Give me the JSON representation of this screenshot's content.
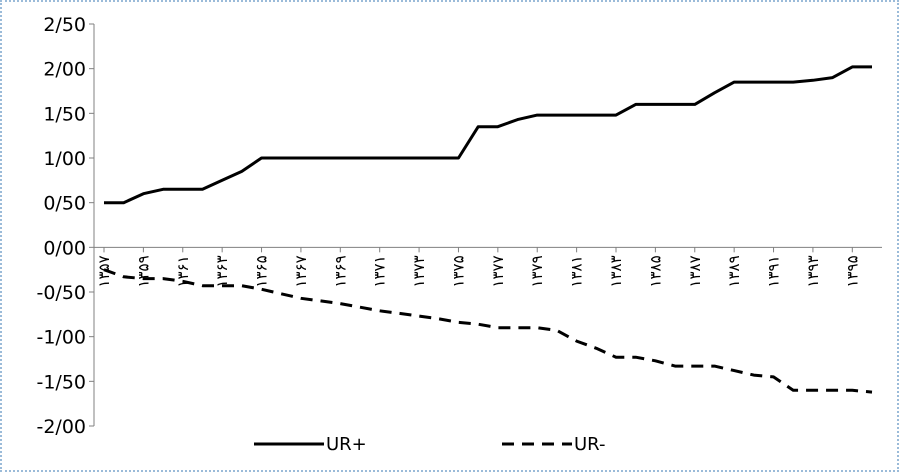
{
  "chart_data": {
    "type": "line",
    "title": "",
    "xlabel": "",
    "ylabel": "",
    "ylim": [
      -2,
      2.5
    ],
    "y_ticks": [
      2.5,
      2,
      1.5,
      1,
      0.5,
      0,
      -0.5,
      -1,
      -1.5,
      -2
    ],
    "y_tick_labels": [
      "2/50",
      "2/00",
      "1/50",
      "1/00",
      "0/50",
      "0/00",
      "-0/50",
      "-1/00",
      "-1/50",
      "-2/00"
    ],
    "x_tick_labels": [
      "۱۳۵۷",
      "۱۳۵۹",
      "۱۳۶۱",
      "۱۳۶۳",
      "۱۳۶۵",
      "۱۳۶۷",
      "۱۳۶۹",
      "۱۳۷۱",
      "۱۳۷۳",
      "۱۳۷۵",
      "۱۳۷۷",
      "۱۳۷۹",
      "۱۳۸۱",
      "۱۳۸۳",
      "۱۳۸۵",
      "۱۳۸۷",
      "۱۳۸۹",
      "۱۳۹۱",
      "۱۳۹۳",
      "۱۳۹۵"
    ],
    "x": [
      1357,
      1358,
      1359,
      1360,
      1361,
      1362,
      1363,
      1364,
      1365,
      1366,
      1367,
      1368,
      1369,
      1370,
      1371,
      1372,
      1373,
      1374,
      1375,
      1376,
      1377,
      1378,
      1379,
      1380,
      1381,
      1382,
      1383,
      1384,
      1385,
      1386,
      1387,
      1388,
      1389,
      1390,
      1391,
      1392,
      1393,
      1394,
      1395,
      1396
    ],
    "series": [
      {
        "name": "UR+",
        "style": "solid",
        "color": "#000000",
        "values": [
          0.5,
          0.5,
          0.6,
          0.65,
          0.65,
          0.65,
          0.75,
          0.85,
          1.0,
          1.0,
          1.0,
          1.0,
          1.0,
          1.0,
          1.0,
          1.0,
          1.0,
          1.0,
          1.0,
          1.35,
          1.35,
          1.43,
          1.48,
          1.48,
          1.48,
          1.48,
          1.48,
          1.6,
          1.6,
          1.6,
          1.6,
          1.73,
          1.85,
          1.85,
          1.85,
          1.85,
          1.87,
          1.9,
          2.02,
          2.02
        ]
      },
      {
        "name": "UR-",
        "style": "dashed",
        "color": "#000000",
        "values": [
          -0.25,
          -0.33,
          -0.35,
          -0.35,
          -0.38,
          -0.43,
          -0.43,
          -0.43,
          -0.47,
          -0.52,
          -0.57,
          -0.6,
          -0.63,
          -0.67,
          -0.71,
          -0.74,
          -0.77,
          -0.8,
          -0.84,
          -0.86,
          -0.9,
          -0.9,
          -0.9,
          -0.93,
          -1.05,
          -1.13,
          -1.23,
          -1.23,
          -1.27,
          -1.33,
          -1.33,
          -1.33,
          -1.38,
          -1.43,
          -1.45,
          -1.6,
          -1.6,
          -1.6,
          -1.6,
          -1.62
        ]
      }
    ],
    "legend": "bottom",
    "grid": false
  }
}
